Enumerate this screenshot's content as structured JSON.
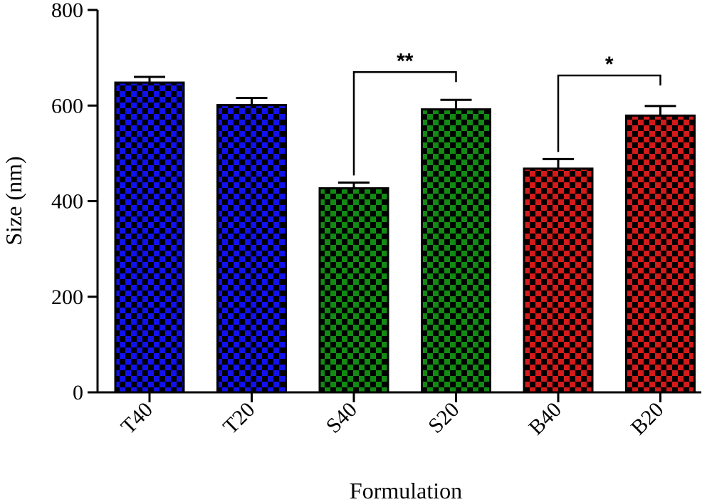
{
  "chart_data": {
    "type": "bar",
    "title": "",
    "xlabel": "Formulation",
    "ylabel": "Size (nm)",
    "ylim": [
      0,
      800
    ],
    "yticks": [
      0,
      200,
      400,
      600,
      800
    ],
    "grid": false,
    "categories": [
      "T40",
      "T20",
      "S40",
      "S20",
      "B40",
      "B20"
    ],
    "values": [
      648,
      601,
      427,
      592,
      468,
      579
    ],
    "errors": [
      12,
      15,
      12,
      20,
      20,
      20
    ],
    "colors": [
      "#1212f0",
      "#1212f0",
      "#138a13",
      "#138a13",
      "#d41a1a",
      "#d41a1a"
    ],
    "pattern": "checkerboard",
    "significance": [
      {
        "from": "S40",
        "to": "S20",
        "label": "**",
        "y": 670
      },
      {
        "from": "B40",
        "to": "B20",
        "label": "*",
        "y": 663
      }
    ]
  }
}
